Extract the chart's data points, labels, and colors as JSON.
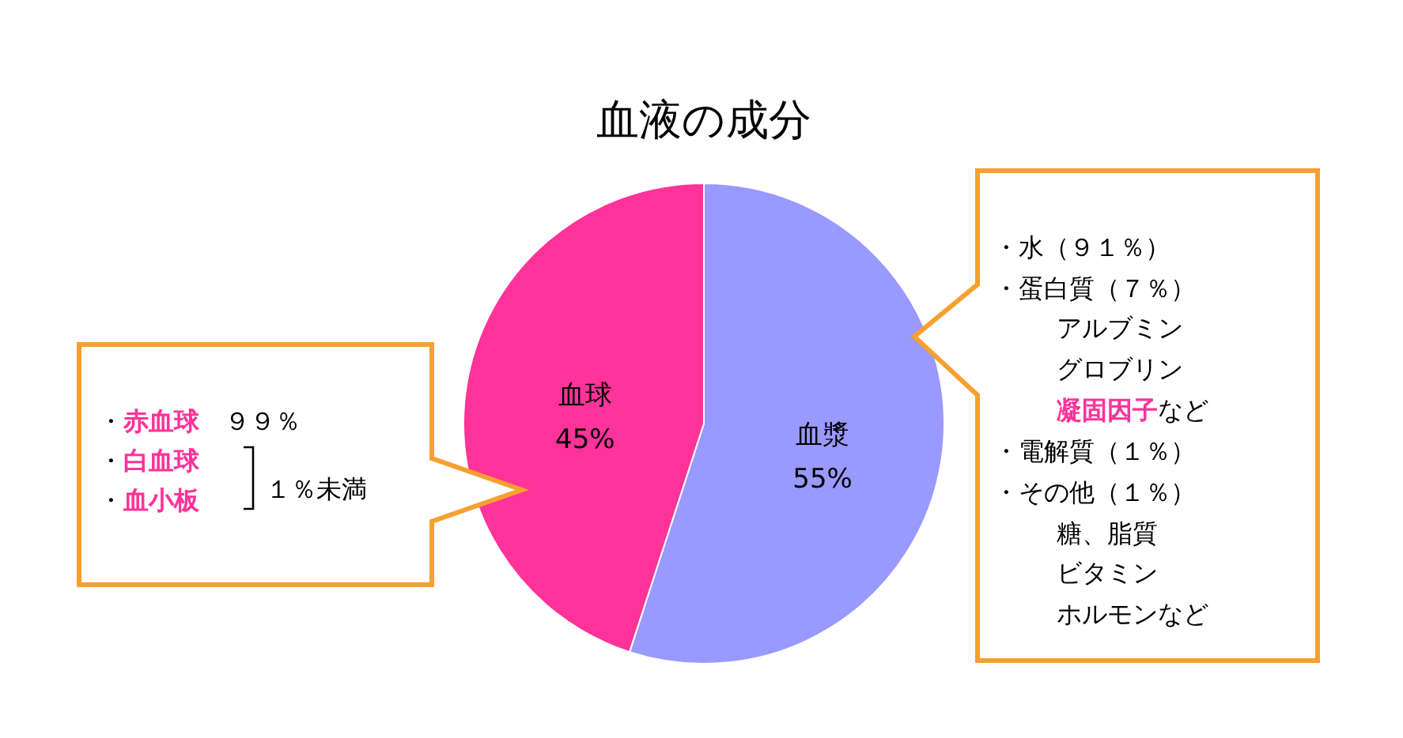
{
  "chart_data": {
    "type": "pie",
    "title": "血液の成分",
    "categories": [
      "血漿",
      "血球"
    ],
    "values": [
      55,
      45
    ],
    "colors": [
      "#9999ff",
      "#ff3399"
    ],
    "value_labels": [
      "55%",
      "45%"
    ],
    "annotations": [
      "・",
      "赤血球",
      "　９９％",
      "・",
      "白血球",
      "・",
      "血小板",
      "１％未満",
      "・水（９１％）",
      "・蛋白質（７％）",
      "アルブミン",
      "グロブリン",
      "凝固因子",
      "など",
      "・電解質（１％）",
      "・その他（１％）",
      "糖、脂質",
      "ビタミン",
      "ホルモンなど"
    ]
  }
}
